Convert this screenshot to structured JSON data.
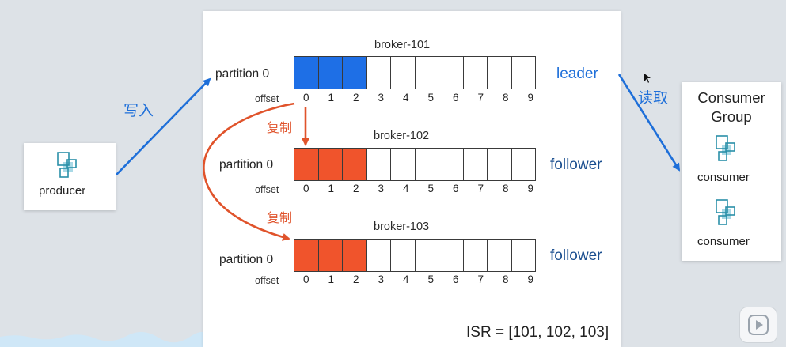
{
  "producer": {
    "label": "producer"
  },
  "write_label": "写入",
  "read_label": "读取",
  "copy_label_1": "复制",
  "copy_label_2": "复制",
  "brokers": [
    {
      "title": "broker-101",
      "partition": "partition 0",
      "role": "leader",
      "filled": 3,
      "fill_color": "#1e6fe6"
    },
    {
      "title": "broker-102",
      "partition": "partition 0",
      "role": "follower",
      "filled": 3,
      "fill_color": "#f0542c"
    },
    {
      "title": "broker-103",
      "partition": "partition 0",
      "role": "follower",
      "filled": 3,
      "fill_color": "#f0542c"
    }
  ],
  "offset_label": "offset",
  "offsets": [
    "0",
    "1",
    "2",
    "3",
    "4",
    "5",
    "6",
    "7",
    "8",
    "9"
  ],
  "consumer_group": {
    "title_line1": "Consumer",
    "title_line2": "Group",
    "consumers": [
      "consumer",
      "consumer"
    ]
  },
  "isr": "ISR = [101, 102, 103]",
  "colors": {
    "blue_arrow": "#1e6fd9",
    "red_arrow": "#e0532b",
    "icon_teal": "#2a8fa8",
    "icon_light": "#a9d9e6"
  }
}
